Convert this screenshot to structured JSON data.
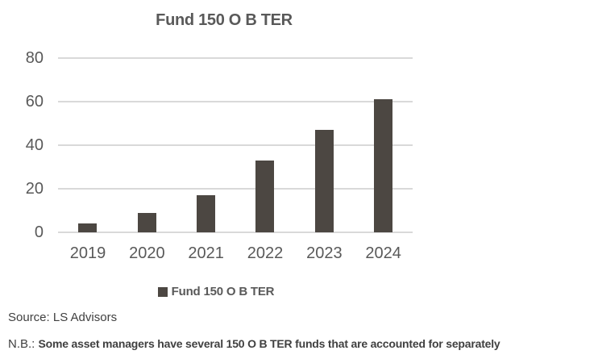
{
  "chart_data": {
    "type": "bar",
    "title": "Fund 150 O B TER",
    "categories": [
      "2019",
      "2020",
      "2021",
      "2022",
      "2023",
      "2024"
    ],
    "series": [
      {
        "name": "Fund 150 O B TER",
        "values": [
          4,
          9,
          17,
          33,
          47,
          61
        ]
      }
    ],
    "xlabel": "",
    "ylabel": "",
    "ylim": [
      0,
      80
    ],
    "y_ticks": [
      0,
      20,
      40,
      60,
      80
    ],
    "grid": true,
    "legend_position": "bottom",
    "colors": {
      "bar": "#4C4742",
      "gridline": "#D9D9D9",
      "axis_text": "#595959",
      "title_text": "#595959",
      "footer_text": "#404040"
    }
  },
  "legend": {
    "label": "Fund 150 O B TER"
  },
  "footer": {
    "source": "Source: LS Advisors",
    "nb_prefix": "N.B.:",
    "nb_text": "Some asset managers have several 150 O B TER funds that are accounted for separately"
  }
}
